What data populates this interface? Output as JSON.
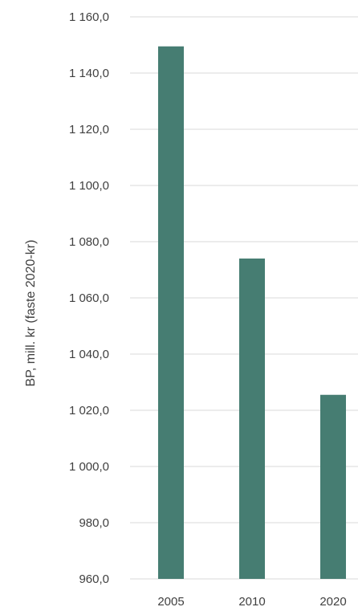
{
  "chart_data": {
    "type": "bar",
    "categories": [
      "2005",
      "2010",
      "2020"
    ],
    "values": [
      1149.5,
      1074.0,
      1025.5
    ],
    "ylabel": "BP, mill. kr (faste 2020-kr)",
    "ylim": [
      960,
      1160
    ],
    "y_ticks": [
      960,
      980,
      1000,
      1020,
      1040,
      1060,
      1080,
      1100,
      1120,
      1140,
      1160
    ],
    "y_tick_labels": [
      "960,0",
      "980,0",
      "1 000,0",
      "1 020,0",
      "1 040,0",
      "1 060,0",
      "1 080,0",
      "1 100,0",
      "1 120,0",
      "1 140,0",
      "1 160,0"
    ],
    "grid": true,
    "legend": "none",
    "bar_color": "#467d72"
  }
}
